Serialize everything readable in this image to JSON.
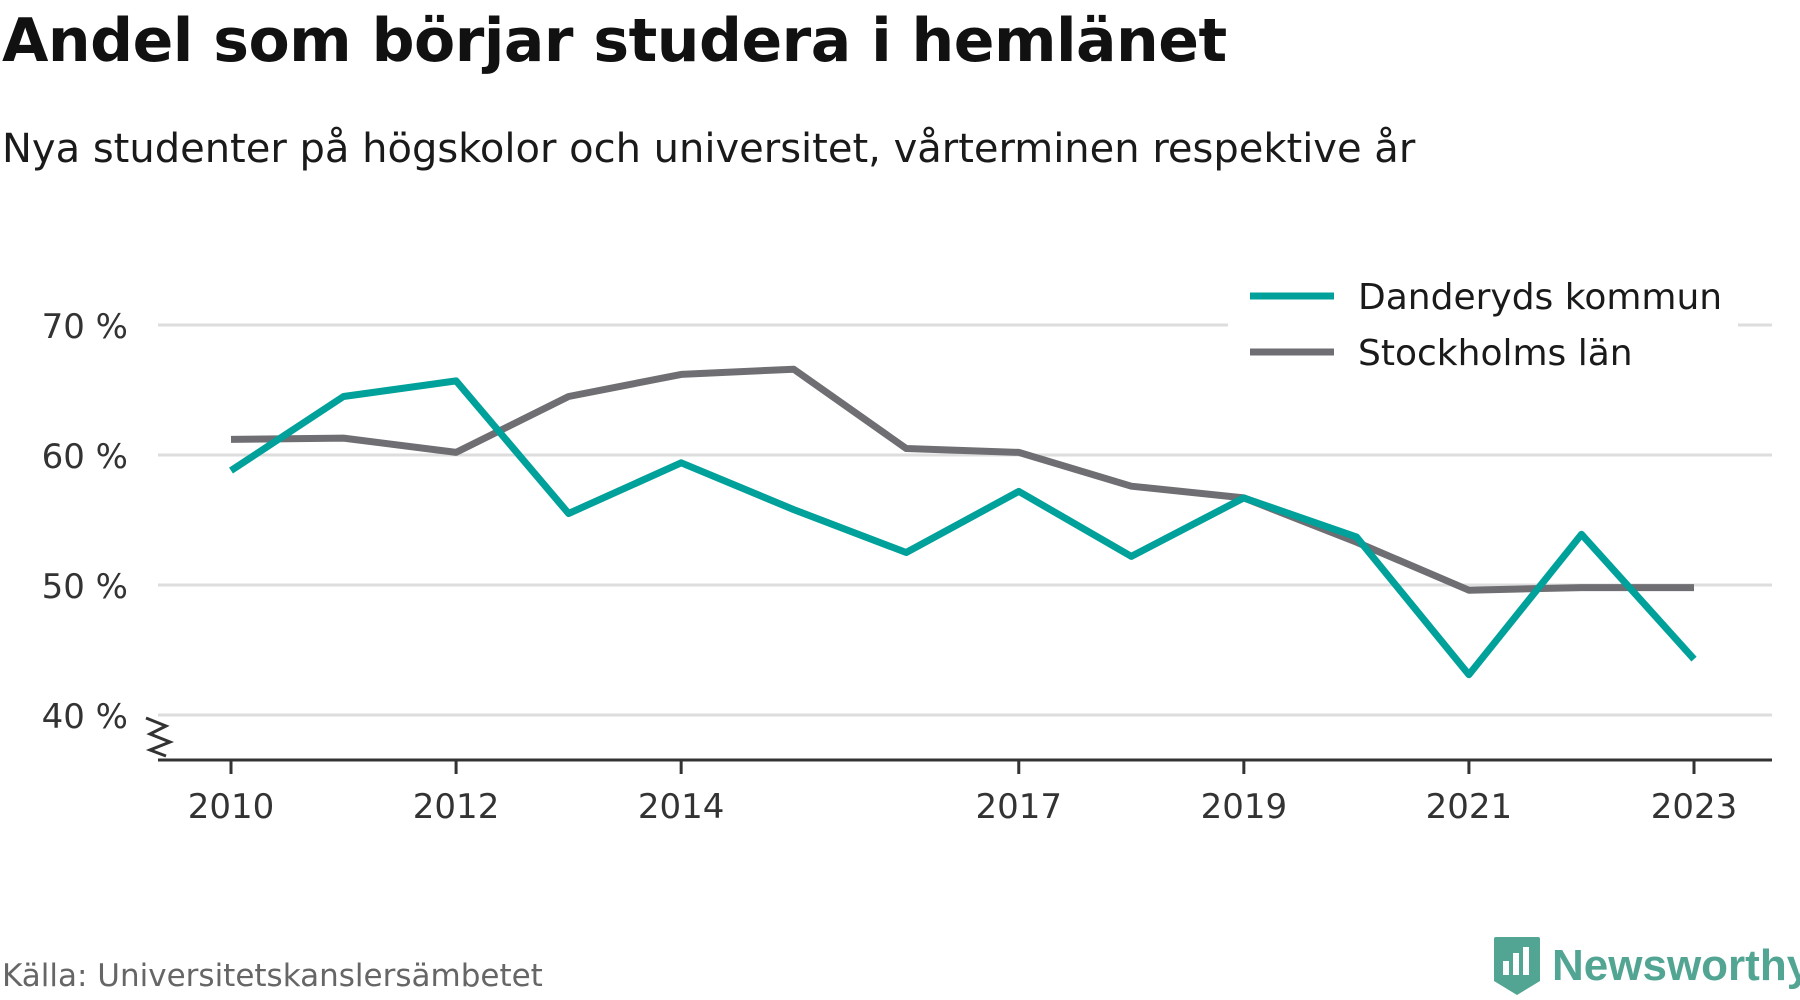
{
  "title": "Andel som börjar studera i hemlänet",
  "subtitle": "Nya studenter på högskolor och universitet, vårterminen respektive år",
  "source": "Källa: Universitetskanslersämbetet",
  "brand": {
    "name": "Newsworthy",
    "color": "#52a593",
    "icon": "newsworthy-logo-icon"
  },
  "colors": {
    "danderyd": "#00a19a",
    "stockholm": "#6f6e73",
    "grid": "#dddddd",
    "axis": "#333333"
  },
  "chart_data": {
    "type": "line",
    "x": [
      2010,
      2011,
      2012,
      2013,
      2014,
      2015,
      2016,
      2017,
      2018,
      2019,
      2020,
      2021,
      2022,
      2023
    ],
    "x_tick_labels": [
      "2010",
      "2012",
      "2014",
      "2017",
      "2019",
      "2021",
      "2023"
    ],
    "x_ticks": [
      2010,
      2012,
      2014,
      2017,
      2019,
      2021,
      2023
    ],
    "y_ticks": [
      40,
      50,
      60,
      70
    ],
    "y_tick_labels": [
      "40 %",
      "50 %",
      "60 %",
      "70 %"
    ],
    "ylim": [
      40,
      70
    ],
    "y_axis_break": true,
    "grid": true,
    "legend_position": "top-right",
    "series": [
      {
        "name": "Danderyds kommun",
        "color": "#00a19a",
        "values": [
          58.8,
          64.5,
          65.7,
          55.5,
          59.4,
          55.8,
          52.5,
          57.2,
          52.2,
          56.7,
          53.7,
          43.1,
          53.9,
          44.3
        ]
      },
      {
        "name": "Stockholms län",
        "color": "#6f6e73",
        "values": [
          61.2,
          61.3,
          60.2,
          64.5,
          66.2,
          66.6,
          60.5,
          60.2,
          57.6,
          56.7,
          53.3,
          49.6,
          49.8,
          49.8
        ]
      }
    ]
  }
}
